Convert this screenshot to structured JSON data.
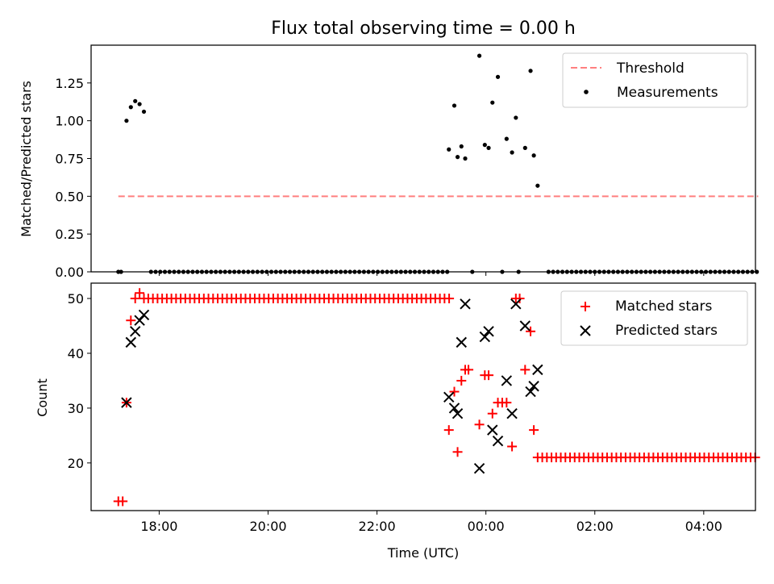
{
  "chart_data": [
    {
      "type": "scatter",
      "title": "Flux total observing time = 0.00 h",
      "xlabel": "",
      "ylabel": "Matched/Predicted stars",
      "xlim": [
        16.75,
        28.95
      ],
      "ylim": [
        0,
        1.5
      ],
      "yticks": [
        "0.00",
        "0.25",
        "0.50",
        "0.75",
        "1.00",
        "1.25"
      ],
      "ytick_values": [
        0,
        0.25,
        0.5,
        0.75,
        1.0,
        1.25
      ],
      "threshold": {
        "name": "Threshold",
        "x": [
          17.25,
          29.0
        ],
        "y": 0.5,
        "color": "#ff7f7f"
      },
      "legend": [
        "Threshold",
        "Measurements"
      ],
      "legend_position": "upper right",
      "measurements": {
        "name": "Measurements",
        "color": "#000000",
        "points": [
          [
            17.25,
            0.0
          ],
          [
            17.3,
            0.0
          ],
          [
            17.4,
            1.0
          ],
          [
            17.48,
            1.09
          ],
          [
            17.56,
            1.13
          ],
          [
            17.64,
            1.11
          ],
          [
            17.72,
            1.06
          ],
          [
            23.32,
            0.81
          ],
          [
            23.42,
            1.1
          ],
          [
            23.48,
            0.76
          ],
          [
            23.55,
            0.83
          ],
          [
            23.62,
            0.75
          ],
          [
            23.88,
            1.43
          ],
          [
            23.98,
            0.84
          ],
          [
            24.05,
            0.82
          ],
          [
            24.12,
            1.12
          ],
          [
            24.22,
            1.29
          ],
          [
            24.38,
            0.88
          ],
          [
            24.48,
            0.79
          ],
          [
            24.55,
            1.02
          ],
          [
            24.72,
            0.82
          ],
          [
            24.82,
            1.33
          ],
          [
            24.88,
            0.77
          ],
          [
            24.95,
            0.57
          ],
          [
            23.75,
            0.0
          ],
          [
            24.3,
            0.0
          ],
          [
            24.6,
            0.0
          ]
        ],
        "zero_range_1": [
          17.85,
          23.35,
          0.085
        ],
        "zero_range_2": [
          25.15,
          29.0,
          0.085
        ]
      }
    },
    {
      "type": "scatter",
      "title": "",
      "xlabel": "Time (UTC)",
      "ylabel": "Count",
      "xlim": [
        16.75,
        28.95
      ],
      "ylim": [
        11.3,
        52.8
      ],
      "xticks": [
        "18:00",
        "20:00",
        "22:00",
        "00:00",
        "02:00",
        "04:00"
      ],
      "xtick_values": [
        18,
        20,
        22,
        24,
        26,
        28
      ],
      "yticks": [
        "20",
        "30",
        "40",
        "50"
      ],
      "ytick_values": [
        20,
        30,
        40,
        50
      ],
      "legend": [
        "Matched stars",
        "Predicted stars"
      ],
      "legend_position": "upper right",
      "series": [
        {
          "name": "Matched stars",
          "marker": "plus",
          "color": "#ff0000",
          "points": [
            [
              17.25,
              13
            ],
            [
              17.33,
              13
            ],
            [
              17.4,
              31
            ],
            [
              17.48,
              46
            ],
            [
              17.56,
              50
            ],
            [
              17.64,
              51
            ],
            [
              17.72,
              50
            ],
            [
              23.32,
              26
            ],
            [
              23.42,
              33
            ],
            [
              23.48,
              22
            ],
            [
              23.55,
              35
            ],
            [
              23.62,
              37
            ],
            [
              23.68,
              37
            ],
            [
              23.88,
              27
            ],
            [
              23.98,
              36
            ],
            [
              24.05,
              36
            ],
            [
              24.12,
              29
            ],
            [
              24.22,
              31
            ],
            [
              24.3,
              31
            ],
            [
              24.38,
              31
            ],
            [
              24.48,
              23
            ],
            [
              24.55,
              50
            ],
            [
              24.62,
              50
            ],
            [
              24.72,
              37
            ],
            [
              24.82,
              44
            ],
            [
              24.88,
              26
            ]
          ],
          "constant_ranges": [
            [
              17.8,
              23.35,
              0.085,
              50
            ],
            [
              24.95,
              29.0,
              0.085,
              21
            ]
          ]
        },
        {
          "name": "Predicted stars",
          "marker": "x",
          "color": "#000000",
          "points": [
            [
              17.4,
              31
            ],
            [
              17.48,
              42
            ],
            [
              17.56,
              44
            ],
            [
              17.64,
              46
            ],
            [
              17.72,
              47
            ],
            [
              23.32,
              32
            ],
            [
              23.42,
              30
            ],
            [
              23.48,
              29
            ],
            [
              23.55,
              42
            ],
            [
              23.62,
              49
            ],
            [
              23.88,
              19
            ],
            [
              23.98,
              43
            ],
            [
              24.05,
              44
            ],
            [
              24.12,
              26
            ],
            [
              24.22,
              24
            ],
            [
              24.38,
              35
            ],
            [
              24.48,
              29
            ],
            [
              24.55,
              49
            ],
            [
              24.72,
              45
            ],
            [
              24.82,
              33
            ],
            [
              24.88,
              34
            ],
            [
              24.95,
              37
            ]
          ]
        }
      ]
    }
  ]
}
